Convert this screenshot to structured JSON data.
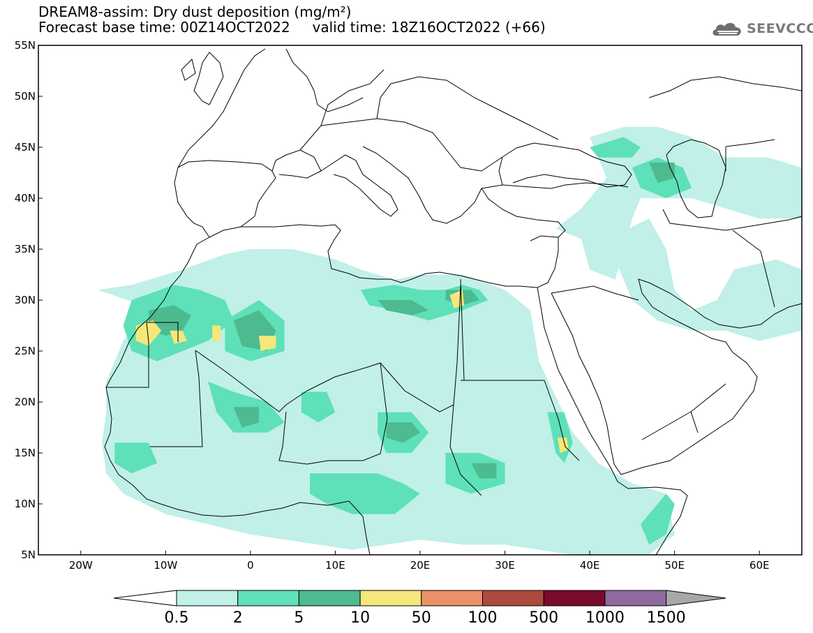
{
  "title": {
    "line1": "DREAM8-assim: Dry dust deposition (mg/m²)",
    "line2_base": "Forecast base time: 00Z14OCT2022",
    "line2_valid": "valid time: 18Z16OCT2022 (+66)"
  },
  "logo": {
    "text": "SEEVCCC",
    "icon": "cloud-icon"
  },
  "map": {
    "projection": "lat-lon",
    "lon_range": [
      -25,
      65
    ],
    "lat_range": [
      5,
      55
    ],
    "lat_ticks": [
      {
        "value": 55,
        "label": "55N"
      },
      {
        "value": 50,
        "label": "50N"
      },
      {
        "value": 45,
        "label": "45N"
      },
      {
        "value": 40,
        "label": "40N"
      },
      {
        "value": 35,
        "label": "35N"
      },
      {
        "value": 30,
        "label": "30N"
      },
      {
        "value": 25,
        "label": "25N"
      },
      {
        "value": 20,
        "label": "20N"
      },
      {
        "value": 15,
        "label": "15N"
      },
      {
        "value": 10,
        "label": "10N"
      },
      {
        "value": 5,
        "label": "5N"
      }
    ],
    "lon_ticks": [
      {
        "value": -20,
        "label": "20W"
      },
      {
        "value": -10,
        "label": "10W"
      },
      {
        "value": 0,
        "label": "0"
      },
      {
        "value": 10,
        "label": "10E"
      },
      {
        "value": 20,
        "label": "20E"
      },
      {
        "value": 30,
        "label": "30E"
      },
      {
        "value": 40,
        "label": "40E"
      },
      {
        "value": 50,
        "label": "50E"
      },
      {
        "value": 60,
        "label": "60E"
      }
    ]
  },
  "colorbar": {
    "levels": [
      "0.5",
      "2",
      "5",
      "10",
      "50",
      "100",
      "500",
      "1000",
      "1500"
    ],
    "colors": [
      "#ffffff",
      "#c0f0e8",
      "#5ee0b8",
      "#4dba90",
      "#f5e77a",
      "#ec9068",
      "#ad4a3e",
      "#7a0a2a",
      "#8e6aa0",
      "#a8a8a8"
    ]
  },
  "dust_regions": [
    {
      "level": 1,
      "points": [
        [
          -18,
          31
        ],
        [
          -14,
          31.5
        ],
        [
          -8,
          33
        ],
        [
          -3,
          34.5
        ],
        [
          0,
          35
        ],
        [
          5,
          35
        ],
        [
          10,
          34
        ],
        [
          13,
          33
        ],
        [
          17,
          32
        ],
        [
          20,
          32.5
        ],
        [
          25,
          32.5
        ],
        [
          30,
          31
        ],
        [
          33,
          29
        ],
        [
          34,
          24
        ],
        [
          38,
          17
        ],
        [
          41,
          14
        ],
        [
          45,
          12
        ],
        [
          49,
          11
        ],
        [
          50,
          7
        ],
        [
          47,
          5
        ],
        [
          38,
          5
        ],
        [
          30,
          6
        ],
        [
          25,
          6
        ],
        [
          20,
          6.5
        ],
        [
          12,
          5.5
        ],
        [
          8,
          6
        ],
        [
          4,
          6.5
        ],
        [
          0,
          7
        ],
        [
          -5,
          8
        ],
        [
          -10,
          9
        ],
        [
          -15,
          11
        ],
        [
          -17,
          13
        ],
        [
          -17.5,
          16
        ],
        [
          -17,
          19
        ],
        [
          -17,
          22
        ],
        [
          -16,
          24
        ],
        [
          -15,
          26
        ],
        [
          -13,
          28
        ],
        [
          -11,
          29
        ]
      ]
    },
    {
      "level": 1,
      "points": [
        [
          40,
          46
        ],
        [
          44,
          47
        ],
        [
          48,
          47
        ],
        [
          52,
          46
        ],
        [
          56,
          44
        ],
        [
          61,
          44
        ],
        [
          65,
          43
        ],
        [
          65,
          38
        ],
        [
          60,
          38
        ],
        [
          56,
          39
        ],
        [
          52,
          40
        ],
        [
          49,
          40
        ],
        [
          46,
          40
        ],
        [
          45,
          38
        ],
        [
          44,
          35
        ],
        [
          43,
          32
        ],
        [
          40,
          33
        ],
        [
          39,
          36
        ],
        [
          36,
          37
        ],
        [
          39,
          39
        ],
        [
          42,
          42
        ]
      ]
    },
    {
      "level": 1,
      "points": [
        [
          42,
          36
        ],
        [
          47,
          38
        ],
        [
          49,
          35
        ],
        [
          50,
          31
        ],
        [
          52,
          29
        ],
        [
          55,
          30
        ],
        [
          57,
          33
        ],
        [
          62,
          34
        ],
        [
          65,
          33
        ],
        [
          65,
          27
        ],
        [
          60,
          26
        ],
        [
          56,
          27
        ],
        [
          52,
          27
        ],
        [
          48,
          28
        ],
        [
          45,
          30
        ]
      ]
    },
    {
      "level": 2,
      "points": [
        [
          -14,
          30
        ],
        [
          -9,
          31.5
        ],
        [
          -6,
          31
        ],
        [
          -3,
          30
        ],
        [
          -2,
          28
        ],
        [
          -5,
          26
        ],
        [
          -8,
          25
        ],
        [
          -11,
          24
        ],
        [
          -14,
          25
        ],
        [
          -15,
          27.5
        ]
      ]
    },
    {
      "level": 2,
      "points": [
        [
          -3,
          28
        ],
        [
          1,
          30
        ],
        [
          4,
          28
        ],
        [
          4,
          25
        ],
        [
          0,
          24
        ],
        [
          -3,
          25
        ]
      ]
    },
    {
      "level": 2,
      "points": [
        [
          13,
          31
        ],
        [
          17,
          31.5
        ],
        [
          20,
          31
        ],
        [
          23,
          31
        ],
        [
          25,
          31.5
        ],
        [
          27,
          31
        ],
        [
          28,
          30
        ],
        [
          25,
          29
        ],
        [
          21,
          28
        ],
        [
          17,
          29
        ],
        [
          14,
          29.5
        ]
      ]
    },
    {
      "level": 2,
      "points": [
        [
          -5,
          22
        ],
        [
          -2,
          21
        ],
        [
          2,
          20
        ],
        [
          4,
          18
        ],
        [
          2,
          17
        ],
        [
          -2,
          17
        ],
        [
          -4,
          19
        ]
      ]
    },
    {
      "level": 2,
      "points": [
        [
          6,
          21
        ],
        [
          9,
          21
        ],
        [
          10,
          19
        ],
        [
          8,
          18
        ],
        [
          6,
          19
        ]
      ]
    },
    {
      "level": 2,
      "points": [
        [
          15,
          19
        ],
        [
          19,
          19
        ],
        [
          21,
          17
        ],
        [
          19,
          15
        ],
        [
          16,
          15
        ],
        [
          15,
          17
        ]
      ]
    },
    {
      "level": 2,
      "points": [
        [
          -16,
          16
        ],
        [
          -12,
          16
        ],
        [
          -11,
          14
        ],
        [
          -14,
          13
        ],
        [
          -16,
          14
        ]
      ]
    },
    {
      "level": 2,
      "points": [
        [
          7,
          13
        ],
        [
          12,
          13
        ],
        [
          15,
          13
        ],
        [
          18,
          12
        ],
        [
          20,
          11
        ],
        [
          17,
          9
        ],
        [
          12,
          9
        ],
        [
          9,
          10
        ],
        [
          7,
          11
        ]
      ]
    },
    {
      "level": 2,
      "points": [
        [
          23,
          15
        ],
        [
          27,
          15
        ],
        [
          30,
          14
        ],
        [
          30,
          12
        ],
        [
          26,
          11
        ],
        [
          23,
          12
        ]
      ]
    },
    {
      "level": 2,
      "points": [
        [
          35,
          19
        ],
        [
          37,
          19
        ],
        [
          38,
          16
        ],
        [
          37,
          14
        ],
        [
          36,
          15
        ]
      ]
    },
    {
      "level": 2,
      "points": [
        [
          45,
          43
        ],
        [
          48,
          44
        ],
        [
          51,
          43
        ],
        [
          52,
          41
        ],
        [
          49,
          40
        ],
        [
          46,
          41
        ]
      ]
    },
    {
      "level": 2,
      "points": [
        [
          40,
          45
        ],
        [
          44,
          46
        ],
        [
          46,
          45
        ],
        [
          45,
          44
        ],
        [
          41,
          44
        ]
      ]
    },
    {
      "level": 2,
      "points": [
        [
          46,
          8
        ],
        [
          49,
          11
        ],
        [
          50,
          10
        ],
        [
          49,
          7
        ],
        [
          47,
          6
        ]
      ]
    },
    {
      "level": 3,
      "points": [
        [
          -12,
          29
        ],
        [
          -9,
          29.5
        ],
        [
          -7,
          28.5
        ],
        [
          -8,
          27
        ],
        [
          -10,
          26.5
        ],
        [
          -12,
          27
        ]
      ]
    },
    {
      "level": 3,
      "points": [
        [
          -2,
          28
        ],
        [
          1,
          29
        ],
        [
          3,
          27
        ],
        [
          2,
          25
        ],
        [
          -1,
          25.5
        ]
      ]
    },
    {
      "level": 3,
      "points": [
        [
          15,
          30
        ],
        [
          19,
          30
        ],
        [
          21,
          29
        ],
        [
          19,
          28.5
        ],
        [
          16,
          29
        ]
      ]
    },
    {
      "level": 3,
      "points": [
        [
          23,
          31
        ],
        [
          26,
          31
        ],
        [
          27,
          30
        ],
        [
          25,
          29.5
        ],
        [
          23,
          30
        ]
      ]
    },
    {
      "level": 3,
      "points": [
        [
          16,
          18
        ],
        [
          19,
          18
        ],
        [
          20,
          17
        ],
        [
          18,
          16
        ],
        [
          16,
          16.5
        ]
      ]
    },
    {
      "level": 3,
      "points": [
        [
          -2,
          19.5
        ],
        [
          1,
          19.5
        ],
        [
          1,
          18
        ],
        [
          -1,
          17.5
        ]
      ]
    },
    {
      "level": 3,
      "points": [
        [
          26,
          14
        ],
        [
          29,
          14
        ],
        [
          29,
          12.5
        ],
        [
          27,
          12.5
        ]
      ]
    },
    {
      "level": 3,
      "points": [
        [
          47,
          43.5
        ],
        [
          50,
          43.5
        ],
        [
          50,
          42
        ],
        [
          48,
          41.5
        ]
      ]
    },
    {
      "level": 4,
      "points": [
        [
          -13.5,
          27.5
        ],
        [
          -11.5,
          28
        ],
        [
          -10.5,
          27
        ],
        [
          -12,
          25.5
        ],
        [
          -13.5,
          26
        ]
      ]
    },
    {
      "level": 4,
      "points": [
        [
          -9.5,
          27
        ],
        [
          -8,
          27
        ],
        [
          -7.5,
          26
        ],
        [
          -9,
          25.7
        ]
      ]
    },
    {
      "level": 4,
      "points": [
        [
          1,
          26.5
        ],
        [
          3,
          26.5
        ],
        [
          3,
          25.3
        ],
        [
          1.2,
          25
        ]
      ]
    },
    {
      "level": 4,
      "points": [
        [
          -4.5,
          27.5
        ],
        [
          -3.5,
          27.5
        ],
        [
          -3.5,
          26
        ],
        [
          -4.5,
          26
        ]
      ]
    },
    {
      "level": 4,
      "points": [
        [
          23.5,
          30.5
        ],
        [
          25,
          31
        ],
        [
          25.2,
          29.5
        ],
        [
          24,
          29.2
        ]
      ]
    },
    {
      "level": 4,
      "points": [
        [
          36.2,
          16.5
        ],
        [
          37.3,
          16.5
        ],
        [
          37.5,
          15.3
        ],
        [
          36.5,
          15
        ]
      ]
    }
  ]
}
